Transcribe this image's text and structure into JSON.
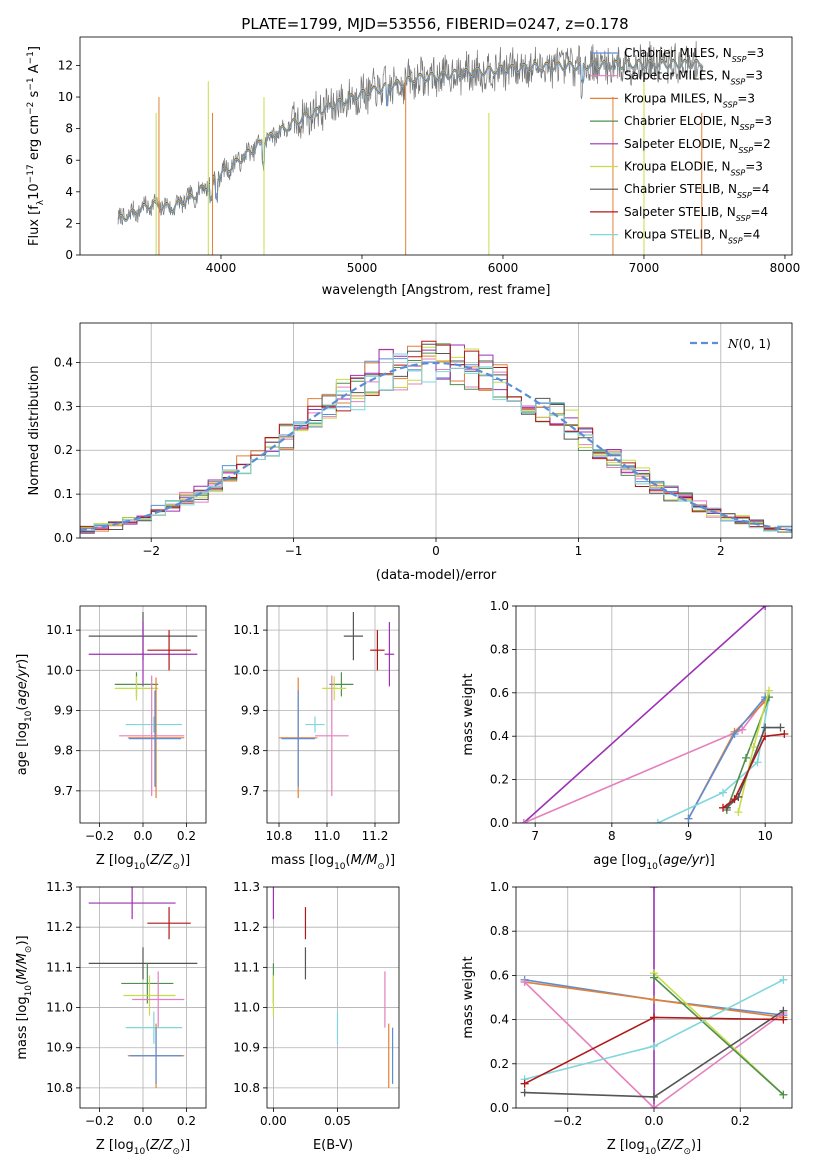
{
  "figure": {
    "title": "PLATE=1799, MJD=53556, FIBERID=0247, z=0.178"
  },
  "legend_labels": [
    "Chabrier MILES, N_SSP=3",
    "Salpeter MILES, N_SSP=3",
    "Kroupa MILES, N_SSP=3",
    "Chabrier ELODIE, N_SSP=3",
    "Salpeter ELODIE, N_SSP=2",
    "Kroupa ELODIE, N_SSP=3",
    "Chabrier STELIB, N_SSP=4",
    "Salpeter STELIB, N_SSP=4",
    "Kroupa STELIB, N_SSP=4"
  ],
  "colors": {
    "chabrier_miles": "#5b8ed6",
    "salpeter_miles": "#e57fbe",
    "kroupa_miles": "#e57f33",
    "chabrier_elodie": "#4f8f4f",
    "salpeter_elodie": "#9b30b5",
    "kroupa_elodie": "#c8dc4a",
    "chabrier_stelib": "#555555",
    "salpeter_stelib": "#b01818",
    "kroupa_stelib": "#7fd6dc",
    "data": "#777777"
  },
  "chart_data": [
    {
      "id": "spectrum",
      "type": "line",
      "title": "PLATE=1799, MJD=53556, FIBERID=0247, z=0.178",
      "xlabel": "wavelength [Angstrom, rest frame]",
      "ylabel": "Flux [f_λ 10^-17 erg cm^-2 s^-1 A^-1]",
      "xlim": [
        3000,
        8050
      ],
      "ylim": [
        0,
        13.8
      ],
      "xticks": [
        4000,
        5000,
        6000,
        7000,
        8000
      ],
      "yticks": [
        0,
        2,
        4,
        6,
        8,
        10,
        12
      ],
      "legend": "top-right",
      "spectrum_anchors": [
        [
          3270,
          2.2
        ],
        [
          3500,
          3.2
        ],
        [
          3650,
          3.0
        ],
        [
          3800,
          3.7
        ],
        [
          3950,
          4.8
        ],
        [
          4100,
          5.8
        ],
        [
          4300,
          7.2
        ],
        [
          4600,
          8.8
        ],
        [
          5000,
          10.2
        ],
        [
          5400,
          11.2
        ],
        [
          5800,
          11.6
        ],
        [
          6200,
          11.9
        ],
        [
          6600,
          12.0
        ],
        [
          7000,
          12.1
        ],
        [
          7400,
          12.1
        ]
      ]
    },
    {
      "id": "residuals",
      "type": "line",
      "xlabel": "(data-model)/error",
      "ylabel": "Normed distribution",
      "xlim": [
        -2.5,
        2.5
      ],
      "ylim": [
        0,
        0.49
      ],
      "xticks": [
        -2,
        -1,
        0,
        1,
        2
      ],
      "yticks": [
        0.0,
        0.1,
        0.2,
        0.3,
        0.4
      ],
      "grid": true,
      "legend": "top-right",
      "legend_entry": "N(0,1)",
      "reference_curve": {
        "name": "N(0,1)",
        "mean": 0,
        "sigma": 1
      }
    },
    {
      "id": "z_age",
      "type": "scatter",
      "xlabel": "Z [log10(Z/Z⊙)]",
      "ylabel": "age [log10(age/yr)]",
      "xlim": [
        -0.29,
        0.29
      ],
      "ylim": [
        9.62,
        10.16
      ],
      "xticks": [
        -0.2,
        0.0,
        0.2
      ],
      "yticks": [
        9.7,
        9.8,
        9.9,
        10.0,
        10.1
      ],
      "grid": true,
      "points": [
        {
          "x": 0.0,
          "y": 10.085,
          "xerr": 0.25,
          "yerr": 0.06,
          "color": "chabrier_stelib"
        },
        {
          "x": 0.0,
          "y": 10.04,
          "xerr": 0.25,
          "yerr": 0.08,
          "color": "salpeter_elodie"
        },
        {
          "x": 0.12,
          "y": 10.05,
          "xerr": 0.1,
          "yerr": 0.05,
          "color": "salpeter_stelib"
        },
        {
          "x": -0.03,
          "y": 9.965,
          "xerr": 0.1,
          "yerr": 0.03,
          "color": "chabrier_elodie"
        },
        {
          "x": -0.03,
          "y": 9.955,
          "xerr": 0.1,
          "yerr": 0.03,
          "color": "kroupa_elodie"
        },
        {
          "x": 0.05,
          "y": 9.865,
          "xerr": 0.13,
          "yerr": 0.02,
          "color": "kroupa_stelib"
        },
        {
          "x": 0.04,
          "y": 9.837,
          "xerr": 0.15,
          "yerr": 0.15,
          "color": "salpeter_miles"
        },
        {
          "x": 0.06,
          "y": 9.832,
          "xerr": 0.13,
          "yerr": 0.15,
          "color": "kroupa_miles"
        },
        {
          "x": 0.055,
          "y": 9.83,
          "xerr": 0.12,
          "yerr": 0.12,
          "color": "chabrier_miles"
        }
      ]
    },
    {
      "id": "mass_age",
      "type": "scatter",
      "xlabel": "mass [log10(M/M⊙)]",
      "ylabel": "",
      "xlim": [
        10.75,
        11.3
      ],
      "ylim": [
        9.62,
        10.16
      ],
      "xticks": [
        10.8,
        11.0,
        11.2
      ],
      "yticks": [
        9.7,
        9.8,
        9.9,
        10.0,
        10.1
      ],
      "grid": true,
      "points": [
        {
          "x": 11.11,
          "y": 10.085,
          "xerr": 0.04,
          "yerr": 0.06,
          "color": "chabrier_stelib"
        },
        {
          "x": 11.26,
          "y": 10.04,
          "xerr": 0.02,
          "yerr": 0.08,
          "color": "salpeter_elodie"
        },
        {
          "x": 11.21,
          "y": 10.05,
          "xerr": 0.03,
          "yerr": 0.05,
          "color": "salpeter_stelib"
        },
        {
          "x": 11.06,
          "y": 9.965,
          "xerr": 0.05,
          "yerr": 0.03,
          "color": "chabrier_elodie"
        },
        {
          "x": 11.03,
          "y": 9.955,
          "xerr": 0.05,
          "yerr": 0.03,
          "color": "kroupa_elodie"
        },
        {
          "x": 10.95,
          "y": 9.865,
          "xerr": 0.04,
          "yerr": 0.02,
          "color": "kroupa_stelib"
        },
        {
          "x": 11.02,
          "y": 9.837,
          "xerr": 0.07,
          "yerr": 0.15,
          "color": "salpeter_miles"
        },
        {
          "x": 10.88,
          "y": 9.832,
          "xerr": 0.08,
          "yerr": 0.15,
          "color": "kroupa_miles"
        },
        {
          "x": 10.88,
          "y": 9.83,
          "xerr": 0.07,
          "yerr": 0.12,
          "color": "chabrier_miles"
        }
      ]
    },
    {
      "id": "age_weight",
      "type": "line",
      "xlabel": "age [log10(age/yr)]",
      "ylabel": "mass weight",
      "xlim": [
        6.75,
        10.35
      ],
      "ylim": [
        0,
        1.0
      ],
      "xticks": [
        7,
        8,
        9,
        10
      ],
      "yticks": [
        0.0,
        0.2,
        0.4,
        0.6,
        0.8,
        1.0
      ],
      "grid": true,
      "series": [
        {
          "color": "salpeter_elodie",
          "x": [
            6.85,
            10.0
          ],
          "y": [
            0.0,
            1.0
          ]
        },
        {
          "color": "salpeter_miles",
          "x": [
            6.85,
            9.7,
            10.0
          ],
          "y": [
            0.0,
            0.43,
            0.57
          ]
        },
        {
          "color": "kroupa_miles",
          "x": [
            9.0,
            9.6,
            10.0
          ],
          "y": [
            0.02,
            0.42,
            0.56
          ]
        },
        {
          "color": "chabrier_miles",
          "x": [
            9.0,
            9.6,
            10.0
          ],
          "y": [
            0.02,
            0.41,
            0.58
          ]
        },
        {
          "color": "kroupa_stelib",
          "x": [
            8.6,
            9.45,
            9.9,
            10.05
          ],
          "y": [
            0.0,
            0.14,
            0.28,
            0.58
          ]
        },
        {
          "color": "chabrier_elodie",
          "x": [
            9.5,
            9.75,
            10.05
          ],
          "y": [
            0.06,
            0.3,
            0.58
          ]
        },
        {
          "color": "kroupa_elodie",
          "x": [
            9.65,
            9.85,
            10.05
          ],
          "y": [
            0.05,
            0.35,
            0.61
          ]
        },
        {
          "color": "chabrier_stelib",
          "x": [
            9.5,
            9.65,
            10.0,
            10.2
          ],
          "y": [
            0.07,
            0.12,
            0.44,
            0.44
          ]
        },
        {
          "color": "salpeter_stelib",
          "x": [
            9.45,
            9.6,
            10.0,
            10.25
          ],
          "y": [
            0.07,
            0.11,
            0.4,
            0.41
          ]
        }
      ]
    },
    {
      "id": "z_mass",
      "type": "scatter",
      "xlabel": "Z [log10(Z/Z⊙)]",
      "ylabel": "mass [log10(M/M⊙)]",
      "xlim": [
        -0.29,
        0.29
      ],
      "ylim": [
        10.75,
        11.3
      ],
      "xticks": [
        -0.2,
        0.0,
        0.2
      ],
      "yticks": [
        10.8,
        10.9,
        11.0,
        11.1,
        11.2,
        11.3
      ],
      "grid": true,
      "points": [
        {
          "x": -0.05,
          "y": 11.26,
          "xerr": 0.2,
          "yerr": 0.04,
          "color": "salpeter_elodie"
        },
        {
          "x": 0.12,
          "y": 11.21,
          "xerr": 0.1,
          "yerr": 0.04,
          "color": "salpeter_stelib"
        },
        {
          "x": 0.0,
          "y": 11.11,
          "xerr": 0.25,
          "yerr": 0.04,
          "color": "chabrier_stelib"
        },
        {
          "x": 0.02,
          "y": 11.06,
          "xerr": 0.12,
          "yerr": 0.05,
          "color": "chabrier_elodie"
        },
        {
          "x": 0.03,
          "y": 11.03,
          "xerr": 0.12,
          "yerr": 0.05,
          "color": "kroupa_elodie"
        },
        {
          "x": 0.07,
          "y": 11.02,
          "xerr": 0.12,
          "yerr": 0.07,
          "color": "salpeter_miles"
        },
        {
          "x": 0.05,
          "y": 10.95,
          "xerr": 0.13,
          "yerr": 0.04,
          "color": "kroupa_stelib"
        },
        {
          "x": 0.06,
          "y": 10.88,
          "xerr": 0.13,
          "yerr": 0.08,
          "color": "kroupa_miles"
        },
        {
          "x": 0.06,
          "y": 10.88,
          "xerr": 0.12,
          "yerr": 0.07,
          "color": "chabrier_miles"
        }
      ]
    },
    {
      "id": "ebv_mass",
      "type": "scatter",
      "xlabel": "E(B-V)",
      "ylabel": "",
      "xlim": [
        -0.005,
        0.098
      ],
      "ylim": [
        10.75,
        11.3
      ],
      "xticks": [
        0.0,
        0.05
      ],
      "yticks": [
        10.8,
        10.9,
        11.0,
        11.1,
        11.2,
        11.3
      ],
      "grid": true,
      "points": [
        {
          "x": 0.0,
          "y": 11.26,
          "yerr": 0.04,
          "color": "salpeter_elodie"
        },
        {
          "x": 0.025,
          "y": 11.21,
          "yerr": 0.04,
          "color": "salpeter_stelib"
        },
        {
          "x": 0.025,
          "y": 11.11,
          "yerr": 0.04,
          "color": "chabrier_stelib"
        },
        {
          "x": 0.0,
          "y": 11.06,
          "yerr": 0.05,
          "color": "chabrier_elodie"
        },
        {
          "x": 0.0,
          "y": 11.03,
          "yerr": 0.05,
          "color": "kroupa_elodie"
        },
        {
          "x": 0.087,
          "y": 11.02,
          "yerr": 0.07,
          "color": "salpeter_miles"
        },
        {
          "x": 0.05,
          "y": 10.95,
          "yerr": 0.04,
          "color": "kroupa_stelib"
        },
        {
          "x": 0.09,
          "y": 10.88,
          "yerr": 0.08,
          "color": "kroupa_miles"
        },
        {
          "x": 0.093,
          "y": 10.88,
          "yerr": 0.07,
          "color": "chabrier_miles"
        }
      ]
    },
    {
      "id": "z_weight",
      "type": "line",
      "xlabel": "Z [log10(Z/Z⊙)]",
      "ylabel": "mass weight",
      "xlim": [
        -0.32,
        0.32
      ],
      "ylim": [
        0,
        1.0
      ],
      "xticks": [
        -0.2,
        0.0,
        0.2
      ],
      "yticks": [
        0.0,
        0.2,
        0.4,
        0.6,
        0.8,
        1.0
      ],
      "grid": true,
      "series": [
        {
          "color": "salpeter_elodie",
          "x": [
            0.0,
            0.0
          ],
          "y": [
            0.0,
            1.0
          ]
        },
        {
          "color": "chabrier_miles",
          "x": [
            -0.3,
            0.0,
            0.3
          ],
          "y": [
            0.58,
            0.49,
            0.42
          ]
        },
        {
          "color": "kroupa_miles",
          "x": [
            -0.3,
            0.0,
            0.3
          ],
          "y": [
            0.57,
            0.49,
            0.41
          ]
        },
        {
          "color": "salpeter_miles",
          "x": [
            -0.3,
            0.0,
            0.3
          ],
          "y": [
            0.57,
            0.0,
            0.43
          ]
        },
        {
          "color": "kroupa_elodie",
          "x": [
            0.0,
            0.3
          ],
          "y": [
            0.61,
            0.06
          ]
        },
        {
          "color": "chabrier_elodie",
          "x": [
            0.0,
            0.3
          ],
          "y": [
            0.59,
            0.06
          ]
        },
        {
          "color": "kroupa_stelib",
          "x": [
            -0.3,
            0.0,
            0.3
          ],
          "y": [
            0.13,
            0.28,
            0.58
          ]
        },
        {
          "color": "chabrier_stelib",
          "x": [
            -0.3,
            0.0,
            0.3
          ],
          "y": [
            0.07,
            0.05,
            0.44
          ]
        },
        {
          "color": "salpeter_stelib",
          "x": [
            -0.3,
            0.0,
            0.3
          ],
          "y": [
            0.11,
            0.41,
            0.4
          ]
        }
      ]
    }
  ]
}
